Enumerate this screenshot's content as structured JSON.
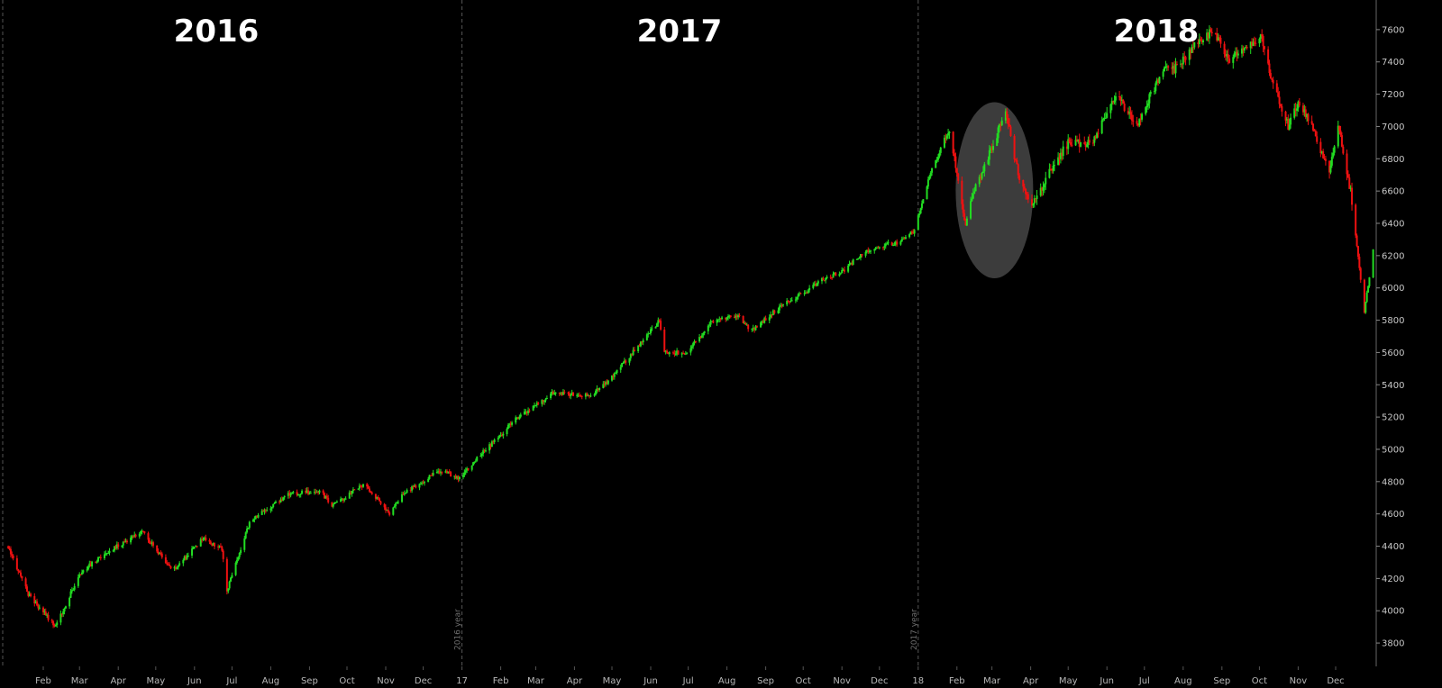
{
  "chart_data": {
    "type": "candlestick",
    "year_titles": [
      "2016",
      "2017",
      "2018"
    ],
    "separator_labels": [
      "2016 year",
      "2017 year"
    ],
    "x_ticks": [
      "Feb",
      "Mar",
      "Apr",
      "May",
      "Jun",
      "Jul",
      "Aug",
      "Sep",
      "Oct",
      "Nov",
      "Dec",
      "17",
      "Feb",
      "Mar",
      "Apr",
      "May",
      "Jun",
      "Jul",
      "Aug",
      "Sep",
      "Oct",
      "Nov",
      "Dec",
      "18",
      "Feb",
      "Mar",
      "Apr",
      "May",
      "Jun",
      "Jul",
      "Aug",
      "Sep",
      "Oct",
      "Nov",
      "Dec"
    ],
    "y_ticks": [
      3800,
      4000,
      4200,
      4400,
      4600,
      4800,
      5000,
      5200,
      5400,
      5600,
      5800,
      6000,
      6200,
      6400,
      6600,
      6800,
      7000,
      7200,
      7400,
      7600
    ],
    "ylim": [
      3700,
      7750
    ],
    "grid": false,
    "colors": {
      "up": "#22dd22",
      "down": "#ee1111",
      "background": "#000000",
      "highlight": "#3c3c3c",
      "separator": "#555555",
      "axis_text": "#c8c8c8"
    },
    "highlight_region": {
      "x_from": "2018-01-31",
      "x_to": "2018-04-03",
      "y_from": 6060,
      "y_to": 7150
    },
    "series": [
      {
        "x": [
          "2016-01-04",
          "2016-01-20",
          "2016-02-11",
          "2016-03-01",
          "2016-03-20",
          "2016-04-20",
          "2016-05-15",
          "2016-06-08",
          "2016-06-23",
          "2016-06-27",
          "2016-07-15",
          "2016-08-15",
          "2016-09-09",
          "2016-09-20",
          "2016-10-15",
          "2016-11-04",
          "2016-11-15",
          "2016-12-15",
          "2016-12-30",
          "2017-01-15",
          "2017-02-15",
          "2017-03-15",
          "2017-04-13",
          "2017-04-25",
          "2017-05-20",
          "2017-06-08",
          "2017-06-12",
          "2017-06-30",
          "2017-07-20",
          "2017-08-10",
          "2017-08-20",
          "2017-09-15",
          "2017-10-02",
          "2017-10-15",
          "2017-11-01",
          "2017-11-15",
          "2017-12-01",
          "2017-12-15",
          "2017-12-29",
          "2018-01-10",
          "2018-01-26",
          "2018-02-08",
          "2018-02-15",
          "2018-02-28",
          "2018-03-12",
          "2018-03-22",
          "2018-04-02",
          "2018-04-15",
          "2018-05-01",
          "2018-05-20",
          "2018-06-08",
          "2018-06-25",
          "2018-07-15",
          "2018-07-25",
          "2018-08-10",
          "2018-08-25",
          "2018-09-07",
          "2018-09-20",
          "2018-10-03",
          "2018-10-10",
          "2018-10-24",
          "2018-11-01",
          "2018-11-15",
          "2018-11-26",
          "2018-12-03",
          "2018-12-13",
          "2018-12-24",
          "2018-12-31"
        ],
        "y": [
          4400,
          4100,
          3900,
          4230,
          4350,
          4490,
          4250,
          4450,
          4380,
          4120,
          4550,
          4720,
          4740,
          4650,
          4790,
          4600,
          4730,
          4870,
          4820,
          4960,
          5200,
          5350,
          5330,
          5400,
          5620,
          5800,
          5600,
          5600,
          5790,
          5830,
          5730,
          5900,
          5970,
          6050,
          6100,
          6200,
          6260,
          6280,
          6350,
          6700,
          6980,
          6400,
          6600,
          6850,
          7100,
          6700,
          6500,
          6700,
          6900,
          6900,
          7200,
          7000,
          7350,
          7350,
          7500,
          7600,
          7420,
          7500,
          7550,
          7300,
          7000,
          7150,
          6950,
          6700,
          7000,
          6600,
          5850,
          6250
        ]
      }
    ]
  }
}
